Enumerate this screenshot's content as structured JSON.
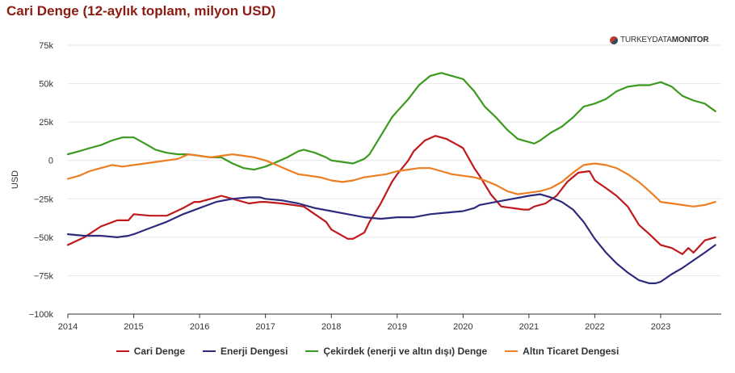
{
  "title": "Cari Denge (12-aylık toplam, milyon USD)",
  "brand": {
    "prefix": "TURKEYDATA",
    "suffix": "MONITOR",
    "icon": "globe-icon"
  },
  "chart_data": {
    "type": "line",
    "ylabel": "USD",
    "ylim": [
      -100000,
      75000
    ],
    "yticks": [
      75000,
      50000,
      25000,
      0,
      -25000,
      -50000,
      -75000,
      -100000
    ],
    "ytick_labels": [
      "75k",
      "50k",
      "25k",
      "0",
      "−25k",
      "−50k",
      "−75k",
      "−100k"
    ],
    "xlim": [
      2014.0,
      2023.92
    ],
    "xticks": [
      2014,
      2015,
      2016,
      2017,
      2018,
      2019,
      2020,
      2021,
      2022,
      2023
    ],
    "xtick_labels": [
      "2014",
      "2015",
      "2016",
      "2017",
      "2018",
      "2019",
      "2020",
      "2021",
      "2022",
      "2023"
    ],
    "grid": "horizontal",
    "legend_position": "bottom",
    "series": [
      {
        "name": "Cari Denge",
        "color": "#c0191b",
        "points": [
          [
            2014.0,
            -55000
          ],
          [
            2014.25,
            -50000
          ],
          [
            2014.5,
            -43000
          ],
          [
            2014.75,
            -39000
          ],
          [
            2014.92,
            -39000
          ],
          [
            2015.0,
            -35000
          ],
          [
            2015.25,
            -36000
          ],
          [
            2015.5,
            -36000
          ],
          [
            2015.75,
            -31000
          ],
          [
            2015.92,
            -27000
          ],
          [
            2016.0,
            -27000
          ],
          [
            2016.25,
            -24000
          ],
          [
            2016.33,
            -23000
          ],
          [
            2016.5,
            -25000
          ],
          [
            2016.75,
            -28000
          ],
          [
            2016.92,
            -27000
          ],
          [
            2017.0,
            -27000
          ],
          [
            2017.25,
            -28000
          ],
          [
            2017.42,
            -29000
          ],
          [
            2017.58,
            -30000
          ],
          [
            2017.75,
            -35000
          ],
          [
            2017.92,
            -40000
          ],
          [
            2018.0,
            -45000
          ],
          [
            2018.25,
            -51000
          ],
          [
            2018.33,
            -51000
          ],
          [
            2018.5,
            -47000
          ],
          [
            2018.58,
            -40000
          ],
          [
            2018.75,
            -28000
          ],
          [
            2018.92,
            -14000
          ],
          [
            2019.0,
            -9000
          ],
          [
            2019.17,
            0
          ],
          [
            2019.25,
            6000
          ],
          [
            2019.42,
            13000
          ],
          [
            2019.58,
            16000
          ],
          [
            2019.75,
            14000
          ],
          [
            2019.92,
            10000
          ],
          [
            2020.0,
            8000
          ],
          [
            2020.17,
            -5000
          ],
          [
            2020.25,
            -10000
          ],
          [
            2020.42,
            -22000
          ],
          [
            2020.58,
            -30000
          ],
          [
            2020.75,
            -31000
          ],
          [
            2020.92,
            -32000
          ],
          [
            2021.0,
            -32000
          ],
          [
            2021.08,
            -30000
          ],
          [
            2021.25,
            -28000
          ],
          [
            2021.42,
            -23000
          ],
          [
            2021.58,
            -14000
          ],
          [
            2021.75,
            -8000
          ],
          [
            2021.92,
            -7000
          ],
          [
            2022.0,
            -13000
          ],
          [
            2022.17,
            -18000
          ],
          [
            2022.33,
            -23000
          ],
          [
            2022.5,
            -30000
          ],
          [
            2022.67,
            -42000
          ],
          [
            2022.83,
            -48000
          ],
          [
            2023.0,
            -55000
          ],
          [
            2023.17,
            -57000
          ],
          [
            2023.33,
            -61000
          ],
          [
            2023.42,
            -57000
          ],
          [
            2023.5,
            -60000
          ],
          [
            2023.67,
            -52000
          ],
          [
            2023.83,
            -50000
          ]
        ]
      },
      {
        "name": "Enerji Dengesi",
        "color": "#2e2b7e",
        "points": [
          [
            2014.0,
            -48000
          ],
          [
            2014.25,
            -49000
          ],
          [
            2014.5,
            -49000
          ],
          [
            2014.75,
            -50000
          ],
          [
            2014.92,
            -49000
          ],
          [
            2015.0,
            -48000
          ],
          [
            2015.25,
            -44000
          ],
          [
            2015.5,
            -40000
          ],
          [
            2015.75,
            -35000
          ],
          [
            2016.0,
            -31000
          ],
          [
            2016.25,
            -27000
          ],
          [
            2016.5,
            -25000
          ],
          [
            2016.75,
            -24000
          ],
          [
            2016.92,
            -24000
          ],
          [
            2017.0,
            -25000
          ],
          [
            2017.25,
            -26000
          ],
          [
            2017.5,
            -28000
          ],
          [
            2017.75,
            -31000
          ],
          [
            2018.0,
            -33000
          ],
          [
            2018.25,
            -35000
          ],
          [
            2018.5,
            -37000
          ],
          [
            2018.75,
            -38000
          ],
          [
            2019.0,
            -37000
          ],
          [
            2019.25,
            -37000
          ],
          [
            2019.5,
            -35000
          ],
          [
            2019.75,
            -34000
          ],
          [
            2020.0,
            -33000
          ],
          [
            2020.17,
            -31000
          ],
          [
            2020.25,
            -29000
          ],
          [
            2020.5,
            -27000
          ],
          [
            2020.75,
            -25000
          ],
          [
            2021.0,
            -23000
          ],
          [
            2021.17,
            -22000
          ],
          [
            2021.33,
            -24000
          ],
          [
            2021.5,
            -27000
          ],
          [
            2021.67,
            -32000
          ],
          [
            2021.83,
            -40000
          ],
          [
            2022.0,
            -51000
          ],
          [
            2022.17,
            -60000
          ],
          [
            2022.33,
            -67000
          ],
          [
            2022.5,
            -73000
          ],
          [
            2022.67,
            -78000
          ],
          [
            2022.83,
            -80000
          ],
          [
            2022.92,
            -80000
          ],
          [
            2023.0,
            -79000
          ],
          [
            2023.17,
            -74000
          ],
          [
            2023.33,
            -70000
          ],
          [
            2023.5,
            -65000
          ],
          [
            2023.67,
            -60000
          ],
          [
            2023.83,
            -55000
          ]
        ]
      },
      {
        "name": "Çekirdek (enerji ve altın dışı) Denge",
        "color": "#3c9a1f",
        "points": [
          [
            2014.0,
            4000
          ],
          [
            2014.17,
            6000
          ],
          [
            2014.33,
            8000
          ],
          [
            2014.5,
            10000
          ],
          [
            2014.67,
            13000
          ],
          [
            2014.83,
            15000
          ],
          [
            2015.0,
            15000
          ],
          [
            2015.17,
            11000
          ],
          [
            2015.33,
            7000
          ],
          [
            2015.5,
            5000
          ],
          [
            2015.67,
            4000
          ],
          [
            2015.83,
            4000
          ],
          [
            2016.0,
            3000
          ],
          [
            2016.17,
            2000
          ],
          [
            2016.33,
            2000
          ],
          [
            2016.5,
            -2000
          ],
          [
            2016.67,
            -5000
          ],
          [
            2016.83,
            -6000
          ],
          [
            2017.0,
            -4000
          ],
          [
            2017.17,
            -1000
          ],
          [
            2017.33,
            2000
          ],
          [
            2017.5,
            6000
          ],
          [
            2017.58,
            7000
          ],
          [
            2017.75,
            5000
          ],
          [
            2017.92,
            2000
          ],
          [
            2018.0,
            0
          ],
          [
            2018.17,
            -1000
          ],
          [
            2018.33,
            -2000
          ],
          [
            2018.5,
            1000
          ],
          [
            2018.58,
            4000
          ],
          [
            2018.75,
            16000
          ],
          [
            2018.92,
            28000
          ],
          [
            2019.0,
            32000
          ],
          [
            2019.17,
            40000
          ],
          [
            2019.33,
            49000
          ],
          [
            2019.5,
            55000
          ],
          [
            2019.67,
            57000
          ],
          [
            2019.83,
            55000
          ],
          [
            2020.0,
            53000
          ],
          [
            2020.17,
            45000
          ],
          [
            2020.33,
            35000
          ],
          [
            2020.5,
            28000
          ],
          [
            2020.67,
            20000
          ],
          [
            2020.83,
            14000
          ],
          [
            2021.0,
            12000
          ],
          [
            2021.08,
            11000
          ],
          [
            2021.17,
            13000
          ],
          [
            2021.33,
            18000
          ],
          [
            2021.5,
            22000
          ],
          [
            2021.67,
            28000
          ],
          [
            2021.83,
            35000
          ],
          [
            2022.0,
            37000
          ],
          [
            2022.17,
            40000
          ],
          [
            2022.33,
            45000
          ],
          [
            2022.5,
            48000
          ],
          [
            2022.67,
            49000
          ],
          [
            2022.83,
            49000
          ],
          [
            2023.0,
            51000
          ],
          [
            2023.17,
            48000
          ],
          [
            2023.33,
            42000
          ],
          [
            2023.5,
            39000
          ],
          [
            2023.67,
            37000
          ],
          [
            2023.83,
            32000
          ]
        ]
      },
      {
        "name": "Altın Ticaret Dengesi",
        "color": "#ed7e22",
        "points": [
          [
            2014.0,
            -12000
          ],
          [
            2014.17,
            -10000
          ],
          [
            2014.33,
            -7000
          ],
          [
            2014.5,
            -5000
          ],
          [
            2014.67,
            -3000
          ],
          [
            2014.83,
            -4000
          ],
          [
            2015.0,
            -3000
          ],
          [
            2015.17,
            -2000
          ],
          [
            2015.33,
            -1000
          ],
          [
            2015.5,
            0
          ],
          [
            2015.67,
            1000
          ],
          [
            2015.83,
            4000
          ],
          [
            2016.0,
            3000
          ],
          [
            2016.17,
            2000
          ],
          [
            2016.33,
            3000
          ],
          [
            2016.5,
            4000
          ],
          [
            2016.67,
            3000
          ],
          [
            2016.83,
            2000
          ],
          [
            2017.0,
            0
          ],
          [
            2017.17,
            -3000
          ],
          [
            2017.33,
            -6000
          ],
          [
            2017.5,
            -9000
          ],
          [
            2017.67,
            -10000
          ],
          [
            2017.83,
            -11000
          ],
          [
            2018.0,
            -13000
          ],
          [
            2018.17,
            -14000
          ],
          [
            2018.33,
            -13000
          ],
          [
            2018.5,
            -11000
          ],
          [
            2018.67,
            -10000
          ],
          [
            2018.83,
            -9000
          ],
          [
            2019.0,
            -7000
          ],
          [
            2019.17,
            -6000
          ],
          [
            2019.33,
            -5000
          ],
          [
            2019.5,
            -5000
          ],
          [
            2019.67,
            -7000
          ],
          [
            2019.83,
            -9000
          ],
          [
            2020.0,
            -10000
          ],
          [
            2020.17,
            -11000
          ],
          [
            2020.33,
            -13000
          ],
          [
            2020.5,
            -16000
          ],
          [
            2020.67,
            -20000
          ],
          [
            2020.83,
            -22000
          ],
          [
            2021.0,
            -21000
          ],
          [
            2021.17,
            -20000
          ],
          [
            2021.33,
            -18000
          ],
          [
            2021.5,
            -14000
          ],
          [
            2021.67,
            -8000
          ],
          [
            2021.83,
            -3000
          ],
          [
            2022.0,
            -2000
          ],
          [
            2022.17,
            -3000
          ],
          [
            2022.33,
            -5000
          ],
          [
            2022.5,
            -9000
          ],
          [
            2022.67,
            -14000
          ],
          [
            2022.83,
            -20000
          ],
          [
            2023.0,
            -27000
          ],
          [
            2023.17,
            -28000
          ],
          [
            2023.33,
            -29000
          ],
          [
            2023.5,
            -30000
          ],
          [
            2023.67,
            -29000
          ],
          [
            2023.83,
            -27000
          ]
        ]
      }
    ]
  }
}
